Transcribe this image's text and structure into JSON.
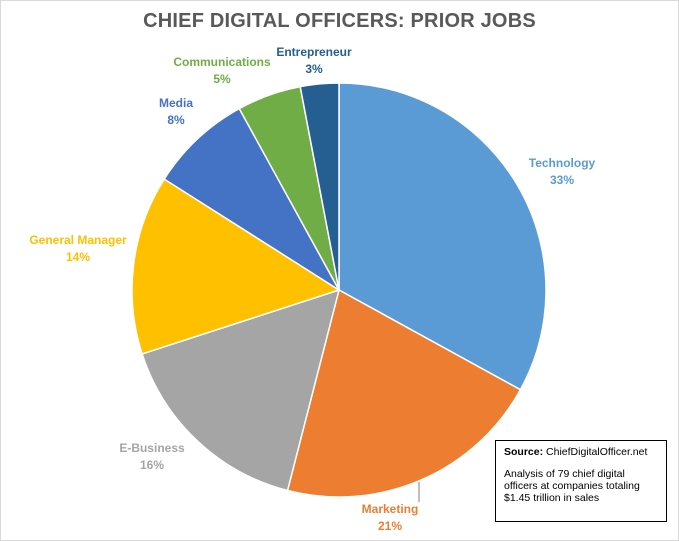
{
  "chart_data": {
    "type": "pie",
    "title": "CHIEF DIGITAL OFFICERS: PRIOR JOBS",
    "categories": [
      "Technology",
      "Marketing",
      "E-Business",
      "General Manager",
      "Media",
      "Communications",
      "Entrepreneur"
    ],
    "values": [
      33,
      21,
      16,
      14,
      8,
      5,
      3
    ],
    "value_labels": [
      "33%",
      "21%",
      "16%",
      "14%",
      "8%",
      "5%",
      "3%"
    ],
    "colors": [
      "#5b9bd5",
      "#ed7d31",
      "#a5a5a5",
      "#ffc000",
      "#4472c4",
      "#70ad47",
      "#255e91"
    ],
    "label_colors": [
      "#5b9bd5",
      "#ed7d31",
      "#a5a5a5",
      "#ffc000",
      "#4472c4",
      "#70ad47",
      "#255e91"
    ],
    "start_angle": "12 o'clock",
    "direction": "clockwise",
    "legend": "none"
  },
  "source_box": {
    "label": "Source:",
    "source": "ChiefDigitalOfficer.net",
    "note": "Analysis of 79 chief digital officers at companies totaling $1.45 trillion in sales"
  }
}
